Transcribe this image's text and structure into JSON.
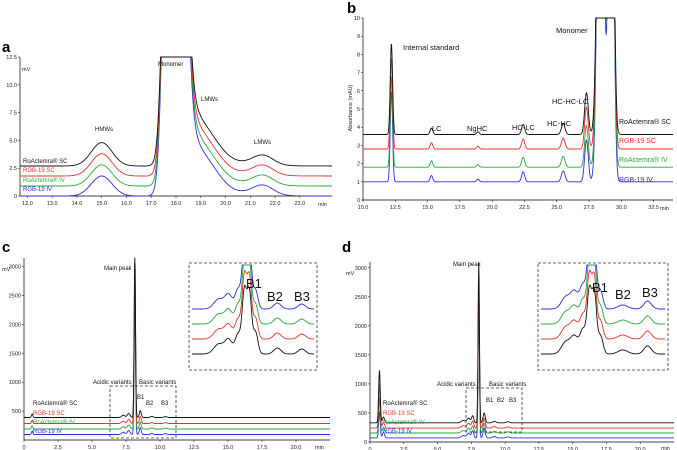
{
  "colors": {
    "s0": "#111111",
    "s1": "#e8302a",
    "s2": "#23a83a",
    "s3": "#2b2fd8"
  },
  "chart_data": [
    {
      "id": "a",
      "panel_label": "a",
      "type": "line",
      "title": "",
      "xlabel": "min",
      "ylabel": "mV",
      "xlim": [
        11.7,
        24.3
      ],
      "ylim": [
        0,
        12.5
      ],
      "xticks": [
        "12.0",
        "13.0",
        "14.0",
        "15.0",
        "16.0",
        "17.0",
        "18.0",
        "19.0",
        "20.0",
        "21.0",
        "22.0",
        "23.0"
      ],
      "xtick_values": [
        12,
        13,
        14,
        15,
        16,
        17,
        18,
        19,
        20,
        21,
        22,
        23
      ],
      "yticks": [
        "0",
        "2.5",
        "5.0",
        "7.5",
        "10.0",
        "12.5"
      ],
      "ytick_values": [
        0,
        2.5,
        5,
        7.5,
        10,
        12.5
      ],
      "series": [
        {
          "name": "RoActemra® SC",
          "offset": 2.7
        },
        {
          "name": "RGB-19 SC",
          "offset": 1.8
        },
        {
          "name": "RoActemra® IV",
          "offset": 0.9
        },
        {
          "name": "RGB-19 IV",
          "offset": 0.0
        }
      ],
      "annotations": [
        {
          "text": "HMWs",
          "x": 15.0,
          "y": 4.6
        },
        {
          "text": "Monomer",
          "x": 18.2,
          "y": 12.0
        },
        {
          "text": "LMWs",
          "x": 19.3,
          "y": 7.0
        },
        {
          "text": "LMWs",
          "x": 21.5,
          "y": 4.2
        }
      ]
    },
    {
      "id": "b",
      "panel_label": "b",
      "type": "line",
      "title": "",
      "xlabel": "min",
      "ylabel": "Absorbance (mAU)",
      "xlim": [
        10,
        34
      ],
      "ylim": [
        0,
        10
      ],
      "xticks": [
        "10.0",
        "12.5",
        "15.0",
        "17.5",
        "20.0",
        "22.5",
        "25.0",
        "27.5",
        "30.0",
        "32.5"
      ],
      "xtick_values": [
        10,
        12.5,
        15,
        17.5,
        20,
        22.5,
        25,
        27.5,
        30,
        32.5
      ],
      "yticks": [
        "0",
        "1",
        "2",
        "3",
        "4",
        "5",
        "6",
        "7",
        "8",
        "9",
        "10"
      ],
      "ytick_values": [
        0,
        1,
        2,
        3,
        4,
        5,
        6,
        7,
        8,
        9,
        10
      ],
      "series": [
        {
          "name": "RoActemra® SC",
          "offset": 3.6
        },
        {
          "name": "RGB-19 SC",
          "offset": 2.8
        },
        {
          "name": "RoActemra® IV",
          "offset": 1.8
        },
        {
          "name": "RGB-19 IV",
          "offset": 1.0
        }
      ],
      "annotations": [
        {
          "text": "Internal standard",
          "x": 12.6,
          "y": 8.2
        },
        {
          "text": "Monomer",
          "x": 27.0,
          "y": 9.5
        },
        {
          "text": "LC",
          "x": 15.3,
          "y": 4.4
        },
        {
          "text": "NgHC",
          "x": 18.8,
          "y": 4.4
        },
        {
          "text": "HC-LC",
          "x": 22.4,
          "y": 4.5
        },
        {
          "text": "HC-HC",
          "x": 25.4,
          "y": 4.8
        },
        {
          "text": "HC-HC-LC",
          "x": 27.3,
          "y": 6.4
        }
      ]
    },
    {
      "id": "c",
      "panel_label": "c",
      "type": "line",
      "title": "",
      "xlabel": "min",
      "ylabel": "mV",
      "xlim": [
        0,
        22.5
      ],
      "ylim": [
        0,
        3150
      ],
      "xticks": [
        "0",
        "2.5",
        "5.0",
        "7.5",
        "10.0",
        "12.5",
        "15.0",
        "17.5",
        "20.0"
      ],
      "xtick_values": [
        0,
        2.5,
        5,
        7.5,
        10,
        12.5,
        15,
        17.5,
        20
      ],
      "yticks": [
        "500",
        "1000",
        "1500",
        "2000",
        "2500",
        "3000"
      ],
      "ytick_values": [
        500,
        1000,
        1500,
        2000,
        2500,
        3000
      ],
      "series": [
        {
          "name": "RoActemra® SC",
          "offset": 390
        },
        {
          "name": "RGB-19 SC",
          "offset": 285
        },
        {
          "name": "RoActemra® IV",
          "offset": 190
        },
        {
          "name": "RGB-19 IV",
          "offset": 95
        }
      ],
      "annotations": [
        {
          "text": "Main peak",
          "x": 7.2,
          "y": 2900
        },
        {
          "text": "Acidic variants",
          "x": 5.6,
          "y": 920
        },
        {
          "text": "Basic variants",
          "x": 9.3,
          "y": 920
        },
        {
          "text": "B1",
          "x": 8.55,
          "y": 560
        },
        {
          "text": "B2",
          "x": 9.4,
          "y": 480
        },
        {
          "text": "B3",
          "x": 10.4,
          "y": 480
        }
      ],
      "inset": {
        "labels": [
          "B1",
          "B2",
          "B3"
        ]
      }
    },
    {
      "id": "d",
      "panel_label": "d",
      "type": "line",
      "title": "",
      "xlabel": "min",
      "ylabel": "mV",
      "xlim": [
        0,
        22.5
      ],
      "ylim": [
        0,
        3100
      ],
      "xticks": [
        "0",
        "2.5",
        "5.0",
        "7.5",
        "10.0",
        "12.5",
        "15.0",
        "17.5",
        "20.0"
      ],
      "xtick_values": [
        0,
        2.5,
        5,
        7.5,
        10,
        12.5,
        15,
        17.5,
        20
      ],
      "yticks": [
        "0",
        "500",
        "1000",
        "1500",
        "2000",
        "2500",
        "3000"
      ],
      "ytick_values": [
        0,
        500,
        1000,
        1500,
        2000,
        2500,
        3000
      ],
      "series": [
        {
          "name": "RoActemra® SC",
          "offset": 330
        },
        {
          "name": "RGB-19 SC",
          "offset": 240
        },
        {
          "name": "RoActemra® IV",
          "offset": 155
        },
        {
          "name": "RGB-19 IV",
          "offset": 70
        }
      ],
      "annotations": [
        {
          "text": "Main peak",
          "x": 7.0,
          "y": 2900
        },
        {
          "text": "Acidic variants",
          "x": 5.4,
          "y": 420
        },
        {
          "text": "Basic variants",
          "x": 9.0,
          "y": 420
        },
        {
          "text": "B1",
          "x": 8.5,
          "y": 330
        },
        {
          "text": "B2",
          "x": 9.3,
          "y": 330
        },
        {
          "text": "B3",
          "x": 10.2,
          "y": 330
        }
      ],
      "inset": {
        "labels": [
          "B1",
          "B2",
          "B3"
        ]
      }
    }
  ]
}
